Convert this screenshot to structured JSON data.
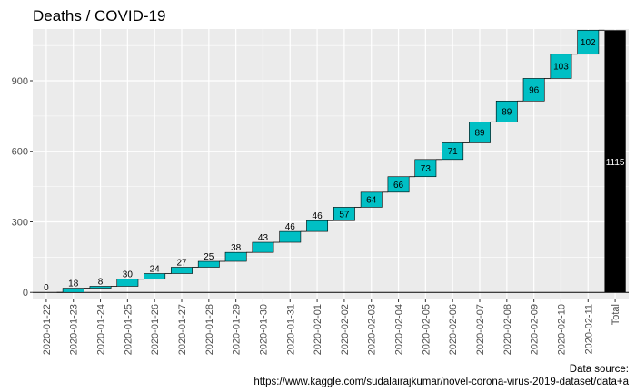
{
  "chart_data": {
    "type": "bar",
    "subtype": "waterfall",
    "title": "Deaths / COVID-19",
    "xlabel": "",
    "ylabel": "",
    "categories": [
      "2020-01-22",
      "2020-01-23",
      "2020-01-24",
      "2020-01-25",
      "2020-01-26",
      "2020-01-27",
      "2020-01-28",
      "2020-01-29",
      "2020-01-30",
      "2020-01-31",
      "2020-02-01",
      "2020-02-02",
      "2020-02-03",
      "2020-02-04",
      "2020-02-05",
      "2020-02-06",
      "2020-02-07",
      "2020-02-08",
      "2020-02-09",
      "2020-02-10",
      "2020-02-11"
    ],
    "values": [
      0,
      18,
      8,
      30,
      24,
      27,
      25,
      38,
      43,
      46,
      46,
      57,
      64,
      66,
      73,
      71,
      89,
      89,
      96,
      103,
      102
    ],
    "total": {
      "label": "Total",
      "value": 1115
    },
    "ylim": [
      -30,
      1120
    ],
    "yticks": [
      0,
      300,
      600,
      900
    ],
    "grid": true,
    "legend": "none",
    "caption_line1": "Data source:",
    "caption_line2": "https://www.kaggle.com/sudalairajkumar/novel-corona-virus-2019-dataset/data+a",
    "colors": {
      "bar": "#00BFC4",
      "total": "#000000",
      "panel": "#EBEBEB",
      "grid": "#FFFFFF"
    }
  }
}
